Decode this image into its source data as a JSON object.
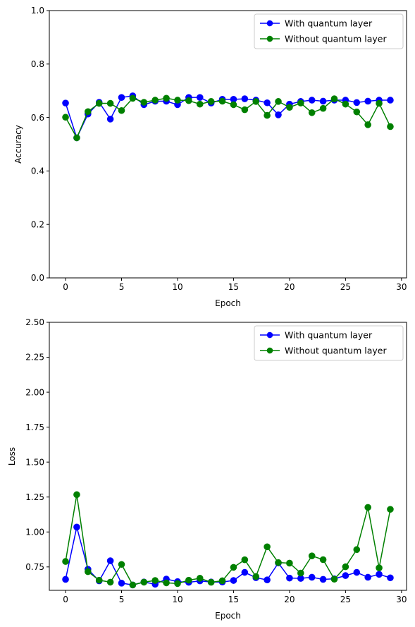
{
  "chart_data": [
    {
      "type": "line",
      "xlabel": "Epoch",
      "ylabel": "Accuracy",
      "xlim": [
        -1.45,
        30.45
      ],
      "ylim": [
        0,
        1.0
      ],
      "xticks": [
        "0",
        "5",
        "10",
        "15",
        "20",
        "25",
        "30"
      ],
      "yticks": [
        "0.0",
        "0.2",
        "0.4",
        "0.6",
        "0.8",
        "1.0"
      ],
      "legend": "top-right",
      "grid": false,
      "x": [
        0,
        1,
        2,
        3,
        4,
        5,
        6,
        7,
        8,
        9,
        10,
        11,
        12,
        13,
        14,
        15,
        16,
        17,
        18,
        19,
        20,
        21,
        22,
        23,
        24,
        25,
        26,
        27,
        28,
        29
      ],
      "series": [
        {
          "name": "With quantum layer",
          "color": "#0000ff",
          "values": [
            0.654,
            0.524,
            0.613,
            0.657,
            0.594,
            0.675,
            0.681,
            0.648,
            0.661,
            0.661,
            0.648,
            0.675,
            0.675,
            0.654,
            0.668,
            0.668,
            0.67,
            0.665,
            0.655,
            0.61,
            0.65,
            0.66,
            0.665,
            0.661,
            0.665,
            0.665,
            0.656,
            0.661,
            0.665,
            0.665
          ]
        },
        {
          "name": "Without quantum layer",
          "color": "#008000",
          "values": [
            0.601,
            0.524,
            0.622,
            0.653,
            0.653,
            0.626,
            0.672,
            0.657,
            0.665,
            0.672,
            0.665,
            0.663,
            0.65,
            0.66,
            0.661,
            0.648,
            0.629,
            0.66,
            0.608,
            0.66,
            0.638,
            0.654,
            0.618,
            0.634,
            0.67,
            0.65,
            0.621,
            0.573,
            0.653,
            0.566
          ]
        }
      ]
    },
    {
      "type": "line",
      "xlabel": "Epoch",
      "ylabel": "Loss",
      "xlim": [
        -1.45,
        30.45
      ],
      "ylim": [
        0.5825,
        2.5
      ],
      "xticks": [
        "0",
        "5",
        "10",
        "15",
        "20",
        "25",
        "30"
      ],
      "yticks": [
        "0.75",
        "1.00",
        "1.25",
        "1.50",
        "1.75",
        "2.00",
        "2.25",
        "2.50"
      ],
      "legend": "top-right",
      "grid": false,
      "x": [
        0,
        1,
        2,
        3,
        4,
        5,
        6,
        7,
        8,
        9,
        10,
        11,
        12,
        13,
        14,
        15,
        16,
        17,
        18,
        19,
        20,
        21,
        22,
        23,
        24,
        25,
        26,
        27,
        28,
        29
      ],
      "series": [
        {
          "name": "With quantum layer",
          "color": "#0000ff",
          "values": [
            0.661,
            1.035,
            0.733,
            0.65,
            0.794,
            0.634,
            0.621,
            0.642,
            0.626,
            0.663,
            0.645,
            0.64,
            0.65,
            0.642,
            0.642,
            0.653,
            0.711,
            0.673,
            0.657,
            0.778,
            0.67,
            0.668,
            0.676,
            0.661,
            0.665,
            0.688,
            0.711,
            0.676,
            0.697,
            0.672
          ]
        },
        {
          "name": "Without quantum layer",
          "color": "#008000",
          "values": [
            0.789,
            1.267,
            0.716,
            0.655,
            0.641,
            0.768,
            0.621,
            0.641,
            0.653,
            0.636,
            0.631,
            0.655,
            0.669,
            0.64,
            0.651,
            0.747,
            0.801,
            0.681,
            0.894,
            0.781,
            0.777,
            0.706,
            0.829,
            0.802,
            0.662,
            0.751,
            0.874,
            1.176,
            0.743,
            1.162
          ]
        }
      ]
    }
  ]
}
